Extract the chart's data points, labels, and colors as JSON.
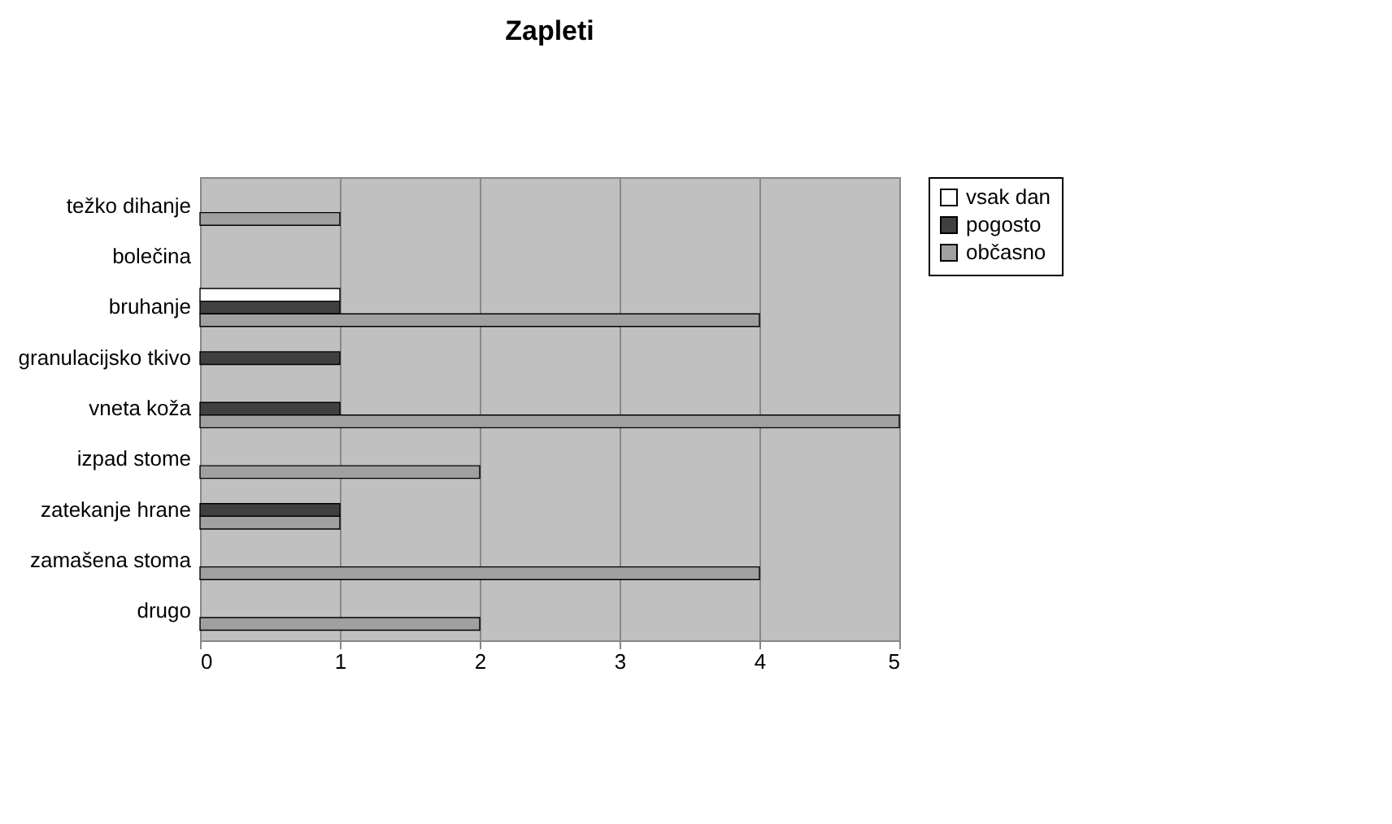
{
  "chart_data": {
    "type": "bar",
    "title": "Zapleti",
    "orientation": "horizontal",
    "categories": [
      "težko dihanje",
      "bolečina",
      "bruhanje",
      "granulacijsko tkivo",
      "vneta koža",
      "izpad stome",
      "zatekanje hrane",
      "zamašena stoma",
      "drugo"
    ],
    "series": [
      {
        "name": "vsak dan",
        "color": "#ffffff",
        "values": [
          null,
          null,
          1,
          null,
          null,
          null,
          null,
          null,
          null
        ]
      },
      {
        "name": "pogosto",
        "color": "#404040",
        "values": [
          null,
          null,
          1,
          1,
          1,
          null,
          1,
          null,
          null
        ]
      },
      {
        "name": "občasno",
        "color": "#a0a0a0",
        "values": [
          1,
          null,
          4,
          null,
          5,
          2,
          1,
          4,
          2
        ]
      }
    ],
    "xlim": [
      0,
      5
    ],
    "xticks": [
      0,
      1,
      2,
      3,
      4,
      5
    ],
    "grid": "x",
    "legend": "right"
  }
}
